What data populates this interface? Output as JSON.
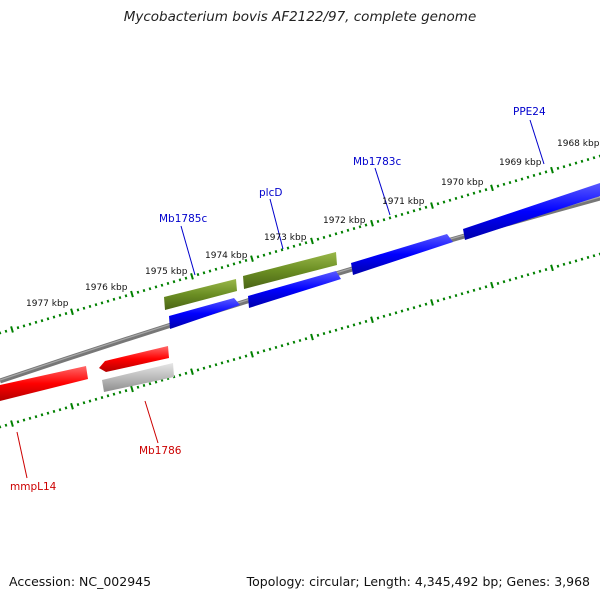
{
  "title": "Mycobacterium bovis AF2122/97, complete genome",
  "footer": {
    "accession": "Accession: NC_002945",
    "summary": "Topology: circular; Length: 4,345,492 bp; Genes: 3,968"
  },
  "colors": {
    "forward_cds": "#0000ff",
    "reverse_cds": "#ff0000",
    "rna": "#6b8e23",
    "pseudogene": "#bbbbbb",
    "backbone": "#777777",
    "ticks": "#008000",
    "forward_label": "#0000cc",
    "reverse_label": "#cc0000"
  },
  "ruler_labels": [
    {
      "id": "kbp-1968",
      "text": "1968 kbp"
    },
    {
      "id": "kbp-1969",
      "text": "1969 kbp"
    },
    {
      "id": "kbp-1970",
      "text": "1970 kbp"
    },
    {
      "id": "kbp-1971",
      "text": "1971 kbp"
    },
    {
      "id": "kbp-1972",
      "text": "1972 kbp"
    },
    {
      "id": "kbp-1973",
      "text": "1973 kbp"
    },
    {
      "id": "kbp-1974",
      "text": "1974 kbp"
    },
    {
      "id": "kbp-1975",
      "text": "1975 kbp"
    },
    {
      "id": "kbp-1976",
      "text": "1976 kbp"
    },
    {
      "id": "kbp-1977",
      "text": "1977 kbp"
    }
  ],
  "gene_labels": [
    {
      "id": "ppe24",
      "text": "PPE24",
      "strand": "forward"
    },
    {
      "id": "mb1783c",
      "text": "Mb1783c",
      "strand": "forward"
    },
    {
      "id": "plcd",
      "text": "plcD",
      "strand": "forward"
    },
    {
      "id": "mb1785c",
      "text": "Mb1785c",
      "strand": "forward"
    },
    {
      "id": "mb1786",
      "text": "Mb1786",
      "strand": "reverse"
    },
    {
      "id": "mmpl14",
      "text": "mmpL14",
      "strand": "reverse"
    }
  ]
}
